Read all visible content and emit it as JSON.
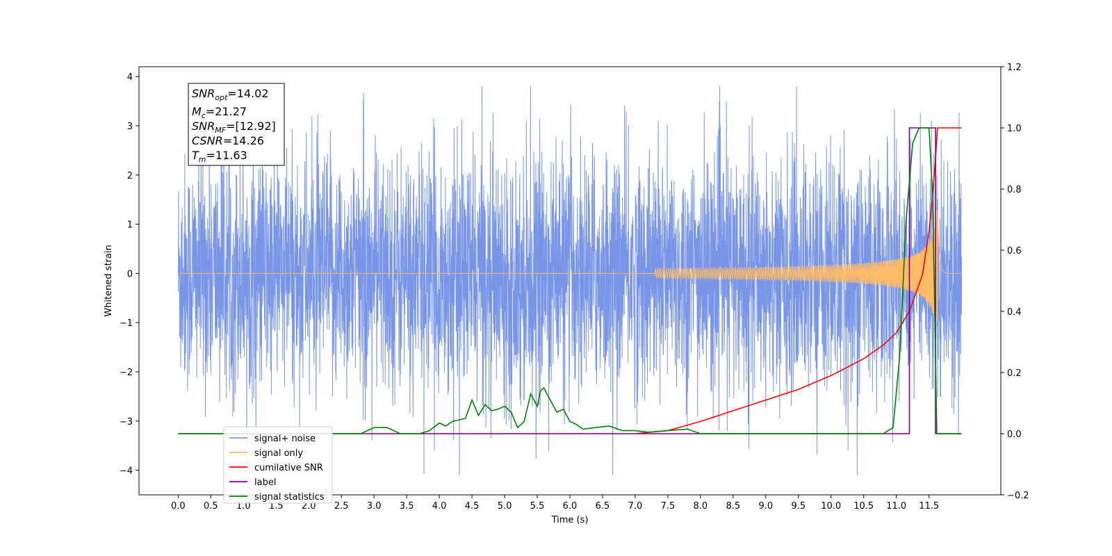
{
  "chart_data": {
    "type": "line",
    "title": "",
    "xlabel": "Time (s)",
    "ylabel": "Whitened strain",
    "xlim": [
      -0.6,
      12.6
    ],
    "ylim": [
      -4.5,
      4.2
    ],
    "y2lim": [
      -0.2,
      1.2
    ],
    "x_ticks": [
      "0.0",
      "0.5",
      "1.0",
      "1.5",
      "2.0",
      "2.5",
      "3.0",
      "3.5",
      "4.0",
      "4.5",
      "5.0",
      "5.5",
      "6.0",
      "6.5",
      "7.0",
      "7.5",
      "8.0",
      "8.5",
      "9.0",
      "9.5",
      "10.0",
      "10.5",
      "11.0",
      "11.5"
    ],
    "y_ticks": [
      4,
      3,
      2,
      1,
      0,
      -1,
      -2,
      -3,
      -4
    ],
    "y2_ticks": [
      "1.2",
      "1.0",
      "0.8",
      "0.6",
      "0.4",
      "0.2",
      "0.0",
      "−0.2"
    ],
    "grid": false,
    "legend_position": "lower-left",
    "annotation": {
      "snr_opt": {
        "label": "SNR",
        "sub": "opt",
        "value": "=14.02"
      },
      "mc": {
        "label": "M",
        "sub": "c",
        "value": "=21.27"
      },
      "snr_mf": {
        "label": "SNR",
        "sub": "MF",
        "value": "=[12.92]"
      },
      "csnr": {
        "label": "CSNR",
        "sub": "",
        "value": "=14.26"
      },
      "tm": {
        "label": "T",
        "sub": "m",
        "value": "=11.63"
      }
    },
    "series": [
      {
        "name": "signal+ noise",
        "color": "#7895e8",
        "axis": "left",
        "x_range": [
          0.0,
          12.0
        ],
        "amplitude_envelope": {
          "typical": 2.0,
          "max": 3.8,
          "min": -4.1
        }
      },
      {
        "name": "signal only",
        "color": "#ffbb66",
        "axis": "left",
        "note_chirp": {
          "start_x": 7.3,
          "merge_x": 11.63,
          "peak": 1.4
        }
      },
      {
        "name": "cumilative SNR",
        "color": "#ff0000",
        "axis": "right",
        "x": [
          7.0,
          7.5,
          8.0,
          8.5,
          9.0,
          9.5,
          10.0,
          10.5,
          10.8,
          11.0,
          11.2,
          11.4,
          11.5,
          11.55,
          11.6,
          11.63,
          12.0
        ],
        "values": [
          0.0,
          0.01,
          0.04,
          0.075,
          0.11,
          0.145,
          0.19,
          0.245,
          0.29,
          0.33,
          0.4,
          0.52,
          0.66,
          0.77,
          0.9,
          1.0,
          1.0
        ]
      },
      {
        "name": "label",
        "color": "#800080",
        "axis": "right",
        "x": [
          0.0,
          11.2,
          11.2,
          11.6,
          11.6,
          12.0
        ],
        "values": [
          0.0,
          0.0,
          1.0,
          1.0,
          0.0,
          0.0
        ]
      },
      {
        "name": "signal statistics",
        "color": "#008000",
        "axis": "right",
        "x": [
          0.0,
          2.8,
          3.0,
          3.2,
          3.4,
          3.7,
          3.85,
          4.0,
          4.1,
          4.2,
          4.4,
          4.5,
          4.6,
          4.7,
          4.8,
          4.9,
          5.0,
          5.1,
          5.2,
          5.3,
          5.4,
          5.5,
          5.55,
          5.6,
          5.7,
          5.8,
          5.9,
          6.0,
          6.1,
          6.2,
          6.4,
          6.6,
          6.8,
          7.0,
          7.2,
          7.5,
          7.8,
          8.0,
          10.8,
          10.95,
          11.05,
          11.15,
          11.25,
          11.35,
          11.5,
          11.55,
          11.58,
          11.62,
          12.0
        ],
        "values": [
          0.0,
          0.0,
          0.02,
          0.02,
          0.0,
          0.0,
          0.01,
          0.035,
          0.025,
          0.04,
          0.05,
          0.11,
          0.06,
          0.095,
          0.075,
          0.08,
          0.09,
          0.07,
          0.02,
          0.04,
          0.13,
          0.09,
          0.14,
          0.15,
          0.11,
          0.07,
          0.08,
          0.04,
          0.03,
          0.015,
          0.02,
          0.025,
          0.01,
          0.01,
          0.005,
          0.01,
          0.015,
          0.0,
          0.0,
          0.02,
          0.25,
          0.7,
          0.95,
          1.0,
          1.0,
          0.8,
          0.5,
          0.0,
          0.0
        ]
      }
    ]
  }
}
